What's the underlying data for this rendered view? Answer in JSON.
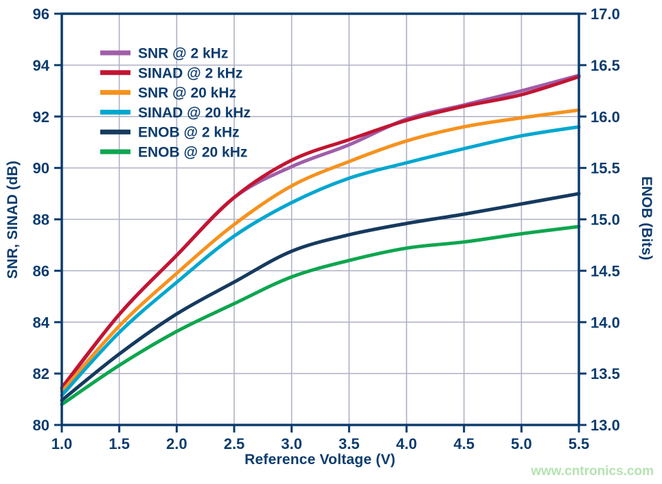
{
  "watermark": {
    "text": "www.cntronics.com",
    "color": "#B5E3B0"
  },
  "chart_data": {
    "type": "line",
    "title": "",
    "xlabel": "Reference Voltage (V)",
    "ylabel_left": "SNR, SINAD (dB)",
    "ylabel_right": "ENOB (Bits)",
    "grid": true,
    "legend_position": "top-left-inside",
    "x_axis": {
      "min": 1.0,
      "max": 5.5,
      "tick_step": 0.5,
      "tick_labels": [
        "1.0",
        "1.5",
        "2.0",
        "2.5",
        "3.0",
        "3.5",
        "4.0",
        "4.5",
        "5.0",
        "5.5"
      ]
    },
    "y_left_axis": {
      "min": 80,
      "max": 96,
      "tick_step": 2,
      "tick_labels": [
        "80",
        "82",
        "84",
        "86",
        "88",
        "90",
        "92",
        "94",
        "96"
      ]
    },
    "y_right_axis": {
      "min": 13.0,
      "max": 17.0,
      "tick_step": 0.5,
      "tick_labels": [
        "13.0",
        "13.5",
        "14.0",
        "14.5",
        "15.0",
        "15.5",
        "16.0",
        "16.5",
        "17.0"
      ]
    },
    "x": [
      1.0,
      1.5,
      2.0,
      2.5,
      3.0,
      3.5,
      4.0,
      4.5,
      5.0,
      5.5
    ],
    "series": [
      {
        "id": "snr-2khz",
        "name": "SNR @ 2 kHz",
        "color": "#A05EA8",
        "axis": "left",
        "unit": "dB",
        "values": [
          81.4,
          84.3,
          86.6,
          88.85,
          90.05,
          90.9,
          91.9,
          92.45,
          93.0,
          93.6
        ]
      },
      {
        "id": "sinad-2khz",
        "name": "SINAD @ 2 kHz",
        "color": "#C21532",
        "axis": "left",
        "unit": "dB",
        "values": [
          81.45,
          84.3,
          86.6,
          88.85,
          90.3,
          91.1,
          91.85,
          92.4,
          92.85,
          93.55
        ]
      },
      {
        "id": "snr-20khz",
        "name": "SNR @ 20 kHz",
        "color": "#F6921E",
        "axis": "left",
        "unit": "dB",
        "values": [
          81.3,
          83.85,
          85.9,
          87.8,
          89.3,
          90.25,
          91.05,
          91.6,
          91.95,
          92.25
        ]
      },
      {
        "id": "sinad-20khz",
        "name": "SINAD @ 20 kHz",
        "color": "#00A7CF",
        "axis": "left",
        "unit": "dB",
        "values": [
          81.15,
          83.6,
          85.55,
          87.35,
          88.65,
          89.6,
          90.2,
          90.75,
          91.25,
          91.6
        ]
      },
      {
        "id": "enob-2khz",
        "name": "ENOB @ 2 kHz",
        "color": "#163A5F",
        "axis": "right",
        "unit": "Bits",
        "values": [
          13.24,
          13.69,
          14.08,
          14.39,
          14.69,
          14.85,
          14.96,
          15.05,
          15.15,
          15.25
        ]
      },
      {
        "id": "enob-20khz",
        "name": "ENOB @ 20 kHz",
        "color": "#0DA64F",
        "axis": "right",
        "unit": "Bits",
        "values": [
          13.2,
          13.58,
          13.91,
          14.18,
          14.44,
          14.6,
          14.72,
          14.78,
          14.86,
          14.93
        ]
      }
    ],
    "styles": {
      "axis_color": "#0C3C6E",
      "text_color": "#0C3C6E",
      "grid_color": "#AEB0C5",
      "background": "#FFFFFF"
    }
  }
}
